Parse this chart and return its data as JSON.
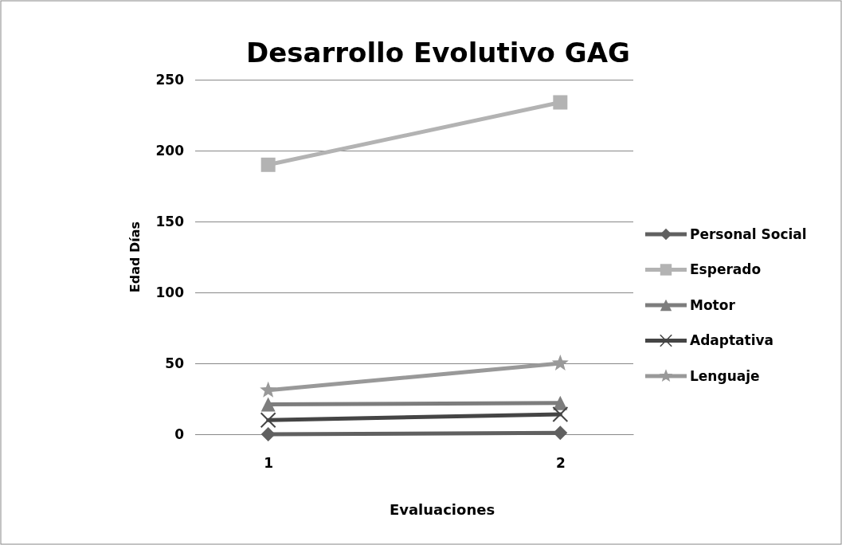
{
  "chart_data": {
    "type": "line",
    "title": "Desarrollo Evolutivo GAG",
    "xlabel": "Evaluaciones",
    "ylabel": "Edad Días",
    "categories": [
      "1",
      "2"
    ],
    "ylim": [
      0,
      250
    ],
    "yticks": [
      0,
      50,
      100,
      150,
      200,
      250
    ],
    "grid": "y",
    "legend": "right",
    "series": [
      {
        "name": "Personal Social",
        "color": "#606060",
        "marker": "diamond",
        "values": [
          0,
          1
        ]
      },
      {
        "name": "Esperado",
        "color": "#b3b3b3",
        "marker": "square",
        "values": [
          190,
          234
        ]
      },
      {
        "name": "Motor",
        "color": "#7d7d7d",
        "marker": "triangle",
        "values": [
          21,
          22
        ]
      },
      {
        "name": "Adaptativa",
        "color": "#454545",
        "marker": "cross",
        "values": [
          10,
          14
        ]
      },
      {
        "name": "Lenguaje",
        "color": "#999999",
        "marker": "star",
        "values": [
          31,
          50
        ]
      }
    ]
  }
}
